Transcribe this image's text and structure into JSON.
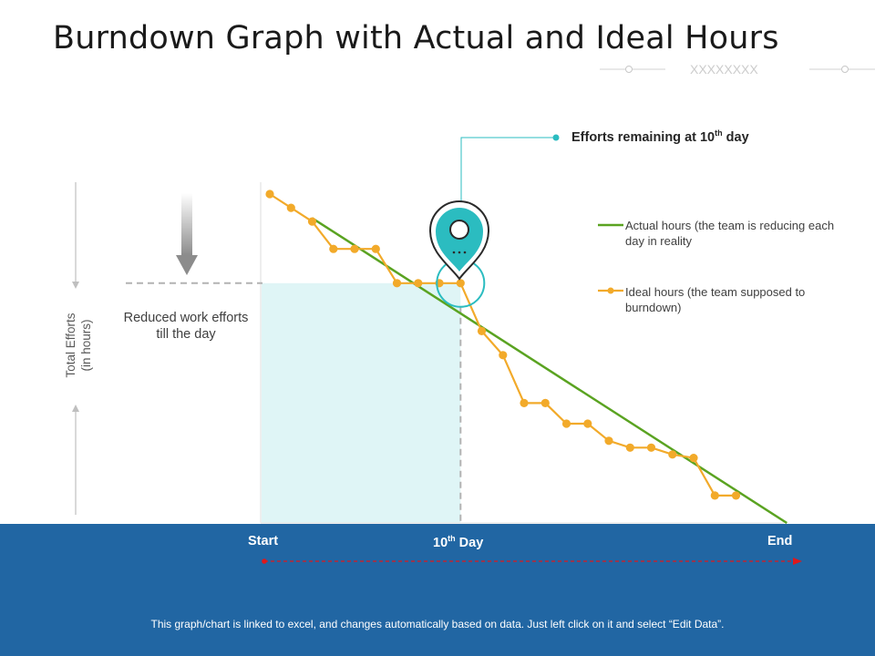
{
  "title": "Burndown Graph with Actual and Ideal Hours",
  "decoration": "XXXXXXXX",
  "colors": {
    "actual_line": "#5aa321",
    "ideal_line": "#f2aa2a",
    "accent_teal": "#2bbcc0",
    "shade": "#dff5f6",
    "footer_bg": "#2166a3",
    "timeline_arrow": "#e0181b"
  },
  "icons": [
    "location-pin-icon",
    "down-arrow-icon"
  ],
  "callout": {
    "prefix": "Efforts remaining at 10",
    "sup": "th",
    "suffix": " day"
  },
  "reduced_label": "Reduced work efforts till the day",
  "y_axis_label_line1": "Total Efforts",
  "y_axis_label_line2": "(in hours)",
  "x_ticks": {
    "start": "Start",
    "mid_prefix": "10",
    "mid_sup": "th",
    "mid_suffix": " Day",
    "end": "End"
  },
  "footnote": "This graph/chart is linked to excel, and changes automatically based on data. Just left click on it and select “Edit Data”.",
  "chart_data": {
    "type": "line",
    "x": [
      1,
      2,
      3,
      4,
      5,
      6,
      7,
      8,
      9,
      10,
      11,
      12,
      13,
      14,
      15,
      16,
      17,
      18,
      19,
      20,
      21,
      22,
      23
    ],
    "x_tick_labels": [
      "Start",
      "10th Day",
      "End"
    ],
    "xlabel": "",
    "ylabel": "Total Efforts (in hours)",
    "ylim": [
      0,
      100
    ],
    "marker_day": 10,
    "series": [
      {
        "name": "Actual hours (the team is reducing each day in reality",
        "type": "straight-line",
        "points": [
          [
            3,
            89
          ],
          [
            25.4,
            0
          ]
        ]
      },
      {
        "name": "Ideal hours (the team supposed to burndown)",
        "values": [
          96,
          92,
          88,
          80,
          80,
          80,
          70,
          70,
          70,
          70,
          56,
          49,
          35,
          35,
          29,
          29,
          24,
          22,
          22,
          20,
          19,
          8,
          8
        ]
      }
    ]
  }
}
